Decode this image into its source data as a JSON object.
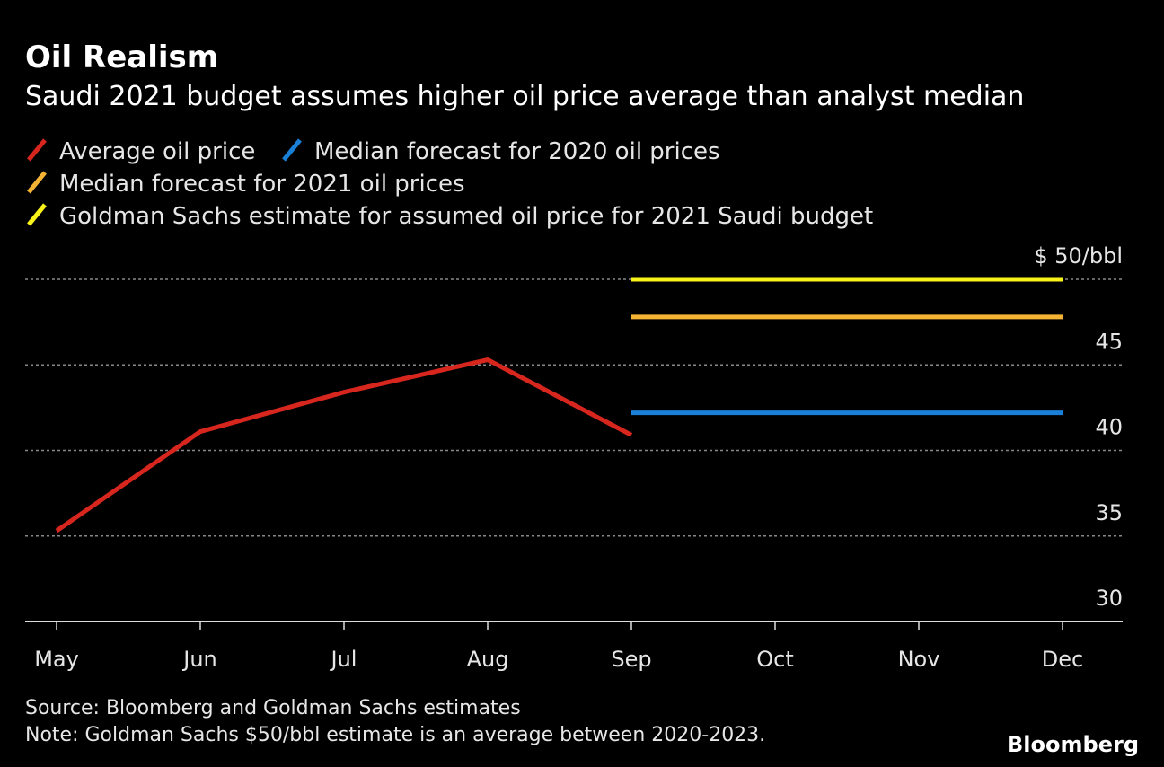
{
  "chart_data": {
    "type": "line",
    "title": "Oil Realism",
    "subtitle": "Saudi 2021 budget assumes higher oil price average than analyst median",
    "categories": [
      "May",
      "Jun",
      "Jul",
      "Aug",
      "Sep",
      "Oct",
      "Nov",
      "Dec"
    ],
    "series": [
      {
        "name": "Average oil price",
        "color": "#d7261e",
        "values": [
          35.3,
          41.1,
          43.4,
          45.3,
          40.9,
          null,
          null,
          null
        ]
      },
      {
        "name": "Median forecast for 2020 oil prices",
        "color": "#1a7fd6",
        "values": [
          null,
          null,
          null,
          null,
          42.2,
          42.2,
          42.2,
          42.2
        ]
      },
      {
        "name": "Median forecast for 2021 oil prices",
        "color": "#f5b335",
        "values": [
          null,
          null,
          null,
          null,
          47.8,
          47.8,
          47.8,
          47.8
        ]
      },
      {
        "name": "Goldman Sachs estimate for assumed oil price for 2021 Saudi budget",
        "color": "#f9f21a",
        "values": [
          null,
          null,
          null,
          null,
          50,
          50,
          50,
          50
        ]
      }
    ],
    "ylim": [
      30,
      50
    ],
    "yticks": [
      30,
      35,
      40,
      45,
      {
        "value": 50,
        "label": "$ 50/bbl"
      }
    ],
    "grid": true,
    "source": "Source: Bloomberg and Goldman Sachs estimates",
    "note": "Note: Goldman Sachs $50/bbl estimate is an average between 2020-2023.",
    "logo": "Bloomberg"
  }
}
